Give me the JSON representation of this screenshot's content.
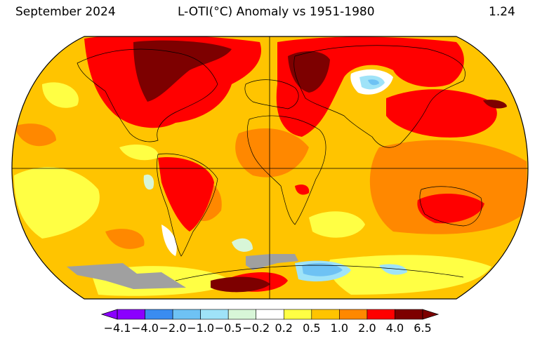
{
  "header": {
    "date": "September 2024",
    "title": "L-OTI(°C) Anomaly vs 1951-1980",
    "global_mean": "1.24"
  },
  "legend": {
    "ticks": [
      "−4.1",
      "−4.0",
      "−2.0",
      "−1.0",
      "−0.5",
      "−0.2",
      "0.2",
      "0.5",
      "1.0",
      "2.0",
      "4.0",
      "6.5"
    ],
    "colors": [
      "#8b00ff",
      "#3a8cf0",
      "#6ec2f4",
      "#9fe3f8",
      "#d8f6d8",
      "#ffffff",
      "#ffff44",
      "#ffc400",
      "#ff8800",
      "#ff0000",
      "#7d0000"
    ]
  },
  "map": {
    "projection": "Robinson",
    "missing_data_color": "#a0a0a0",
    "background_color": "#ffc400"
  }
}
